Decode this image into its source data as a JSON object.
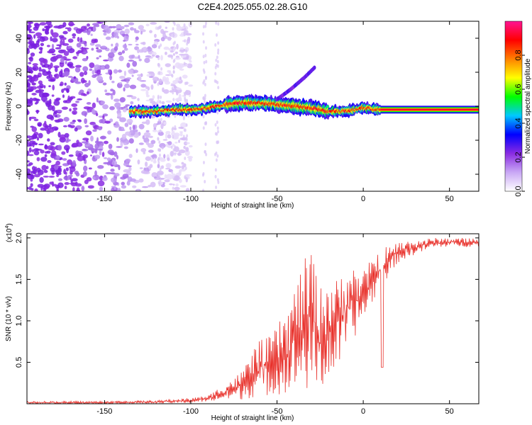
{
  "figure": {
    "title": "C2E4.2025.055.02.28.G10"
  },
  "chart_data": [
    {
      "type": "heatmap",
      "title": "C2E4.2025.055.02.28.G10",
      "xlabel": "Height of straight line (km)",
      "ylabel": "Frequency (Hz)",
      "xlim": [
        -195,
        67
      ],
      "ylim": [
        -50,
        50
      ],
      "xticks": [
        -150,
        -100,
        -50,
        0,
        50
      ],
      "yticks": [
        -40,
        -20,
        0,
        20,
        40
      ],
      "colorbar": {
        "label": "Normalized spectral amplitude",
        "range": [
          0.0,
          1.0
        ],
        "ticks": [
          "0.0",
          "0.2",
          "0.4",
          "0.6",
          "0.8"
        ],
        "colors": [
          "#ffffff",
          "#c9a8f5",
          "#8a2be2",
          "#0000ff",
          "#00c8ff",
          "#00ff00",
          "#ffff00",
          "#ff8000",
          "#ff0000",
          "#ff1493"
        ]
      },
      "ridge": {
        "x": [
          -135,
          -120,
          -110,
          -100,
          -90,
          -80,
          -70,
          -60,
          -50,
          -40,
          -30,
          -20,
          -10,
          0,
          10,
          20,
          30,
          40,
          50,
          60,
          67
        ],
        "y": [
          -3,
          -3,
          -2,
          -2,
          -1,
          1,
          2,
          2,
          1,
          0,
          -1,
          -3,
          -3,
          -1,
          -2,
          -2,
          -2,
          -2,
          -2,
          -2,
          -2
        ]
      },
      "branch": {
        "x": [
          -50,
          -42,
          -34,
          -28
        ],
        "y": [
          4,
          10,
          17,
          23
        ]
      }
    },
    {
      "type": "line",
      "xlabel": "Height of straight line (km)",
      "ylabel": "SNR (10 * v/v)",
      "yscale_label": "(x10",
      "yscale_exp": "4",
      "yscale_close": ")",
      "xlim": [
        -195,
        67
      ],
      "ylim": [
        0,
        20500
      ],
      "xticks": [
        -150,
        -100,
        -50,
        0,
        50
      ],
      "yticks": [
        {
          "value": 5000,
          "label": "0.5"
        },
        {
          "value": 10000,
          "label": "1.0"
        },
        {
          "value": 15000,
          "label": "1.5"
        },
        {
          "value": 20000,
          "label": "2.0"
        }
      ],
      "color": "#e8302a",
      "envelope": {
        "x": [
          -195,
          -150,
          -120,
          -100,
          -90,
          -80,
          -70,
          -62,
          -55,
          -45,
          -35,
          -30,
          -25,
          -20,
          -15,
          -10,
          -5,
          0,
          5,
          10,
          15,
          20,
          25,
          30,
          40,
          50,
          60,
          67
        ],
        "low": [
          0,
          0,
          50,
          100,
          250,
          400,
          500,
          800,
          1000,
          1200,
          1500,
          1200,
          1500,
          2500,
          4000,
          6000,
          8000,
          10000,
          12000,
          14000,
          15500,
          17000,
          17500,
          18000,
          18700,
          19000,
          18900,
          19000
        ],
        "high": [
          300,
          300,
          400,
          700,
          1000,
          2500,
          4000,
          7500,
          8000,
          11000,
          17000,
          19000,
          14000,
          16000,
          15000,
          17000,
          16500,
          16000,
          17500,
          19000,
          19000,
          19500,
          19700,
          19800,
          20000,
          20000,
          20000,
          20000
        ]
      },
      "spike": {
        "x": 11,
        "y": 4400
      }
    }
  ]
}
